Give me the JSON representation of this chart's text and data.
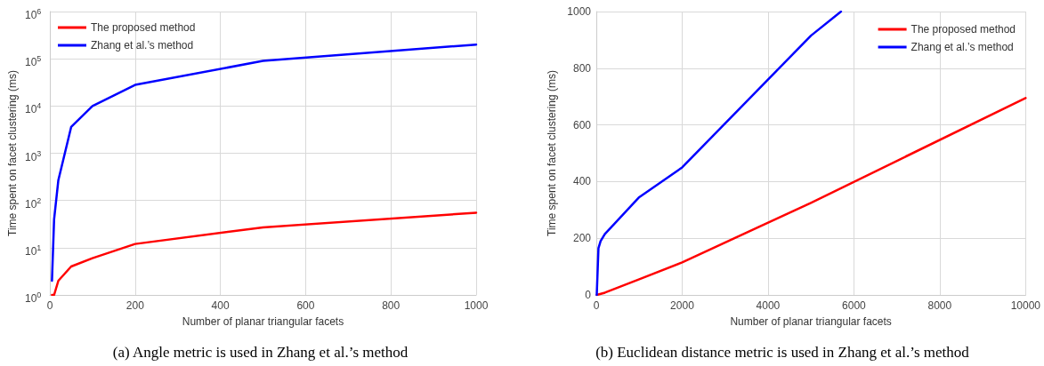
{
  "chart_data": [
    {
      "type": "line",
      "xlabel": "Number of planar triangular facets",
      "ylabel": "Time spent on facet clustering (ms)",
      "x": [
        5,
        10,
        20,
        50,
        100,
        200,
        500,
        1000
      ],
      "xlim": [
        0,
        1000
      ],
      "xticks": [
        0,
        200,
        400,
        600,
        800,
        1000
      ],
      "log": "y",
      "ylim": [
        1,
        1000000
      ],
      "yticks": [
        {
          "value": 1,
          "label": "10$^{0}$"
        },
        {
          "value": 10,
          "label": "10$^{1}$"
        },
        {
          "value": 100,
          "label": "10$^{2}$"
        },
        {
          "value": 1000,
          "label": "10$^{3}$"
        },
        {
          "value": 10000,
          "label": "10$^{4}$"
        },
        {
          "value": 100000,
          "label": "10$^{5}$"
        },
        {
          "value": 1000000,
          "label": "10$^{6}$"
        }
      ],
      "grid": true,
      "legend": "top left",
      "series": [
        {
          "name": "The proposed method",
          "color": "#ff0000",
          "values": [
            1,
            1,
            2,
            4,
            6,
            12,
            27,
            55
          ]
        },
        {
          "name": "Zhang et al.’s method",
          "color": "#0000ff",
          "values": [
            2,
            40,
            270,
            3600,
            10000,
            28000,
            90000,
            200000
          ]
        }
      ],
      "annotations": [
        "(a) Angle metric is used in Zhang et al.’s method"
      ]
    },
    {
      "type": "line",
      "xlabel": "Number of planar triangular facets",
      "ylabel": "Time spent on facet clustering (ms)",
      "xlim": [
        0,
        10000
      ],
      "xticks": [
        0,
        2000,
        4000,
        6000,
        8000,
        10000
      ],
      "ylim": [
        0,
        1000
      ],
      "yticks": [
        0,
        200,
        400,
        600,
        800,
        1000
      ],
      "grid": true,
      "legend": "top right",
      "series": [
        {
          "name": "The proposed method",
          "color": "#ff0000",
          "x": [
            10,
            200,
            1000,
            2000,
            5000,
            10000
          ],
          "values": [
            0,
            8,
            55,
            115,
            325,
            695
          ]
        },
        {
          "name": "Zhang et al.’s method",
          "color": "#0000ff",
          "x": [
            10,
            50,
            100,
            200,
            1000,
            2000,
            5000,
            5700
          ],
          "values": [
            0,
            165,
            190,
            215,
            345,
            450,
            915,
            1000
          ]
        }
      ],
      "annotations": [
        "(b) Euclidean distance metric is used in Zhang et al.’s method"
      ]
    }
  ]
}
